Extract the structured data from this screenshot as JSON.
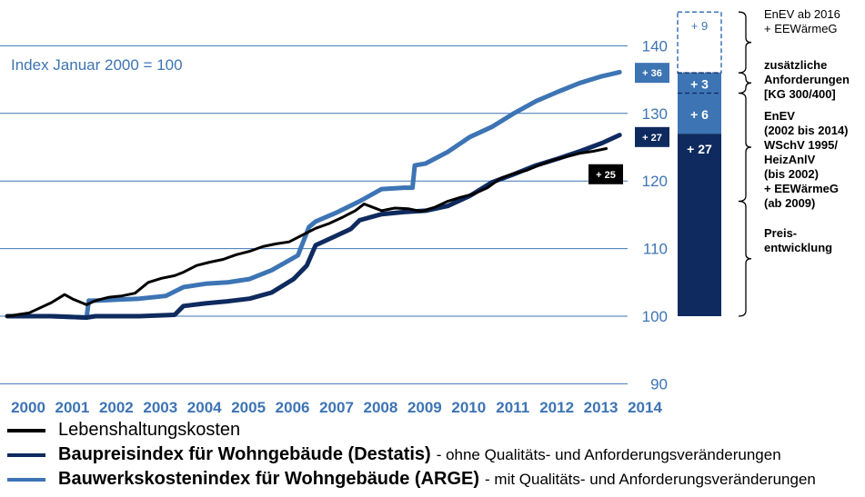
{
  "chart_data": {
    "type": "line",
    "index_label": "Index Januar 2000 = 100",
    "x_ticks": [
      "2000",
      "2001",
      "2002",
      "2003",
      "2004",
      "2005",
      "2006",
      "2007",
      "2008",
      "2009",
      "2010",
      "2011",
      "2012",
      "2013",
      "2014"
    ],
    "y_ticks": [
      "90",
      "100",
      "110",
      "120",
      "130",
      "140"
    ],
    "xlim": [
      2000,
      2014
    ],
    "ylim": [
      90,
      145
    ],
    "grid": true,
    "series": [
      {
        "name": "Lebenshaltungskosten",
        "color": "#000000",
        "x": [
          2000.0,
          2000.5,
          2001.0,
          2001.3,
          2001.5,
          2001.8,
          2002.0,
          2002.3,
          2002.6,
          2002.9,
          2003.2,
          2003.5,
          2003.8,
          2004.0,
          2004.3,
          2004.6,
          2004.9,
          2005.2,
          2005.5,
          2005.8,
          2006.1,
          2006.4,
          2006.7,
          2007.0,
          2007.3,
          2007.6,
          2007.9,
          2008.1,
          2008.3,
          2008.5,
          2008.8,
          2009.1,
          2009.4,
          2009.7,
          2010.0,
          2010.3,
          2010.6,
          2010.9,
          2011.2,
          2011.5,
          2011.8,
          2012.1,
          2012.4,
          2012.7,
          2013.0,
          2013.3,
          2013.6
        ],
        "y": [
          100.0,
          100.5,
          102.0,
          103.2,
          102.5,
          101.7,
          102.3,
          102.8,
          103.0,
          103.4,
          105.0,
          105.6,
          106.0,
          106.5,
          107.5,
          108.0,
          108.4,
          109.1,
          109.6,
          110.3,
          110.7,
          111.0,
          112.0,
          113.0,
          113.7,
          114.6,
          115.6,
          116.6,
          116.1,
          115.6,
          116.0,
          115.9,
          115.5,
          116.1,
          117.0,
          117.6,
          118.1,
          119.0,
          120.4,
          121.1,
          121.6,
          122.4,
          123.1,
          123.6,
          124.1,
          124.4,
          124.8
        ]
      },
      {
        "name": "Baupreisindex für Wohngebäude (Destatis)",
        "note": "- ohne Qualitäts- und Anforderungsveränderungen",
        "color": "#0e2a5e",
        "x": [
          2000.0,
          2001.0,
          2001.8,
          2002.0,
          2003.0,
          2003.8,
          2004.0,
          2004.5,
          2005.0,
          2005.5,
          2006.0,
          2006.5,
          2006.8,
          2007.0,
          2007.4,
          2007.8,
          2008.0,
          2008.5,
          2009.0,
          2009.5,
          2010.0,
          2010.5,
          2011.0,
          2011.5,
          2012.0,
          2012.5,
          2013.0,
          2013.5,
          2013.9
        ],
        "y": [
          100.0,
          100.0,
          99.8,
          100.0,
          100.0,
          100.2,
          101.5,
          101.9,
          102.2,
          102.6,
          103.5,
          105.5,
          107.5,
          110.5,
          111.7,
          112.9,
          114.2,
          115.1,
          115.4,
          115.6,
          116.3,
          117.8,
          119.8,
          121.0,
          122.3,
          123.3,
          124.4,
          125.6,
          126.8
        ]
      },
      {
        "name": "Bauwerkskostenindex für Wohngebäude (ARGE)",
        "note": "- mit Qualitäts- und Anforderungsveränderungen",
        "color": "#3d74b4",
        "x": [
          2000.0,
          2001.0,
          2001.8,
          2001.85,
          2002.0,
          2003.0,
          2003.6,
          2004.0,
          2004.5,
          2005.0,
          2005.5,
          2006.0,
          2006.6,
          2006.85,
          2007.0,
          2007.5,
          2008.0,
          2008.5,
          2009.0,
          2009.2,
          2009.25,
          2009.5,
          2010.0,
          2010.5,
          2011.0,
          2011.5,
          2012.0,
          2012.5,
          2013.0,
          2013.5,
          2013.9
        ],
        "y": [
          100.0,
          100.0,
          99.8,
          102.3,
          102.3,
          102.6,
          103.0,
          104.3,
          104.8,
          105.0,
          105.5,
          106.8,
          109.0,
          113.2,
          114.0,
          115.4,
          117.0,
          118.8,
          119.0,
          119.0,
          122.3,
          122.6,
          124.3,
          126.5,
          128.0,
          130.0,
          131.8,
          133.2,
          134.5,
          135.5,
          136.1
        ]
      }
    ],
    "end_labels": [
      {
        "text": "+ 36",
        "y": 136.0,
        "bg": "#3d74b4"
      },
      {
        "text": "+ 27",
        "y": 126.5,
        "bg": "#0e2a5e"
      },
      {
        "text": "+ 25",
        "y": 121.0,
        "bg": "#000000"
      }
    ],
    "stacked_bar": {
      "segments": [
        {
          "text": "+ 27",
          "from": 100,
          "to": 127,
          "fill": "#0e2a5e",
          "text_color": "#ffffff",
          "style": "solid"
        },
        {
          "text": "+ 6",
          "from": 127,
          "to": 133,
          "fill": "#3d74b4",
          "text_color": "#ffffff",
          "style": "solid"
        },
        {
          "text": "+ 3",
          "from": 133,
          "to": 136,
          "fill": "#3d74b4",
          "text_color": "#ffffff",
          "style": "solid"
        },
        {
          "text": "+ 9",
          "from": 136,
          "to": 145,
          "fill": "#ffffff",
          "text_color": "#3d74b4",
          "style": "dashed"
        }
      ],
      "annotations": [
        {
          "lines": [
            "EnEV ab 2016",
            "+ EEWärmeG"
          ],
          "bold": false,
          "from": 136,
          "to": 145
        },
        {
          "lines": [
            "zusätzliche",
            "Anforderungen",
            "[KG 300/400]"
          ],
          "bold": true,
          "from": 133,
          "to": 136
        },
        {
          "lines": [
            "EnEV",
            "(2002 bis 2014)",
            "WSchV 1995/",
            "HeizAnlV",
            "(bis 2002)",
            "+ EEWärmeG",
            "(ab 2009)"
          ],
          "bold": true,
          "from": 117,
          "to": 133
        },
        {
          "lines": [
            "Preis-",
            "entwicklung"
          ],
          "bold": true,
          "from": 100,
          "to": 117
        }
      ]
    }
  },
  "legend": [
    {
      "label": "Lebenshaltungskosten",
      "note": "",
      "color": "#000000",
      "bold": false
    },
    {
      "label": "Baupreisindex für Wohngebäude (Destatis)",
      "note": "- ohne Qualitäts- und Anforderungsveränderungen",
      "color": "#0e2a5e",
      "bold": true
    },
    {
      "label": "Bauwerkskostenindex für Wohngebäude (ARGE)",
      "note": "- mit Qualitäts- und Anforderungsveränderungen",
      "color": "#3d74b4",
      "bold": true
    }
  ]
}
